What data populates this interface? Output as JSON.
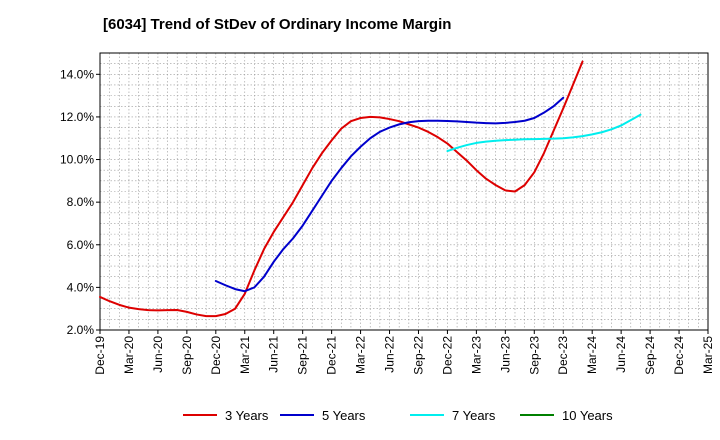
{
  "chart_data": {
    "type": "line",
    "title": "[6034]  Trend of StDev of Ordinary Income Margin",
    "xlabel": "",
    "ylabel": "",
    "x_ticks": [
      "Dec-19",
      "Mar-20",
      "Jun-20",
      "Sep-20",
      "Dec-20",
      "Mar-21",
      "Jun-21",
      "Sep-21",
      "Dec-21",
      "Mar-22",
      "Jun-22",
      "Sep-22",
      "Dec-22",
      "Mar-23",
      "Jun-23",
      "Sep-23",
      "Dec-23",
      "Mar-24",
      "Jun-24",
      "Sep-24",
      "Dec-24",
      "Mar-25"
    ],
    "y_ticks": [
      "2.0%",
      "4.0%",
      "6.0%",
      "8.0%",
      "10.0%",
      "12.0%",
      "14.0%"
    ],
    "ylim": [
      2.0,
      15.0
    ],
    "grid": true,
    "legend_position": "bottom",
    "series": [
      {
        "name": "3 Years",
        "color": "#dd0000",
        "start_index": 0,
        "values": [
          3.55,
          3.35,
          3.18,
          3.05,
          2.98,
          2.93,
          2.92,
          2.93,
          2.94,
          2.85,
          2.73,
          2.65,
          2.65,
          2.75,
          3.0,
          3.7,
          4.8,
          5.8,
          6.6,
          7.3,
          8.0,
          8.8,
          9.6,
          10.3,
          10.9,
          11.45,
          11.8,
          11.95,
          12.0,
          11.98,
          11.9,
          11.8,
          11.65,
          11.5,
          11.3,
          11.05,
          10.75,
          10.35,
          9.95,
          9.5,
          9.1,
          8.8,
          8.55,
          8.5,
          8.8,
          9.4,
          10.3,
          11.35,
          12.4,
          13.5,
          14.6
        ]
      },
      {
        "name": "5 Years",
        "color": "#0000cc",
        "start_index": 12,
        "values": [
          4.3,
          4.1,
          3.92,
          3.82,
          4.0,
          4.5,
          5.2,
          5.8,
          6.3,
          6.9,
          7.6,
          8.3,
          9.0,
          9.6,
          10.15,
          10.6,
          11.0,
          11.3,
          11.5,
          11.65,
          11.75,
          11.8,
          11.82,
          11.82,
          11.81,
          11.79,
          11.76,
          11.73,
          11.71,
          11.7,
          11.72,
          11.76,
          11.82,
          11.95,
          12.2,
          12.5,
          12.9
        ]
      },
      {
        "name": "7 Years",
        "color": "#00eeee",
        "start_index": 36,
        "values": [
          10.4,
          10.55,
          10.68,
          10.78,
          10.84,
          10.88,
          10.91,
          10.93,
          10.95,
          10.96,
          10.97,
          10.98,
          11.0,
          11.04,
          11.1,
          11.18,
          11.28,
          11.42,
          11.6,
          11.85,
          12.1
        ]
      },
      {
        "name": "10 Years",
        "color": "#008000",
        "start_index": 0,
        "values": []
      }
    ]
  }
}
